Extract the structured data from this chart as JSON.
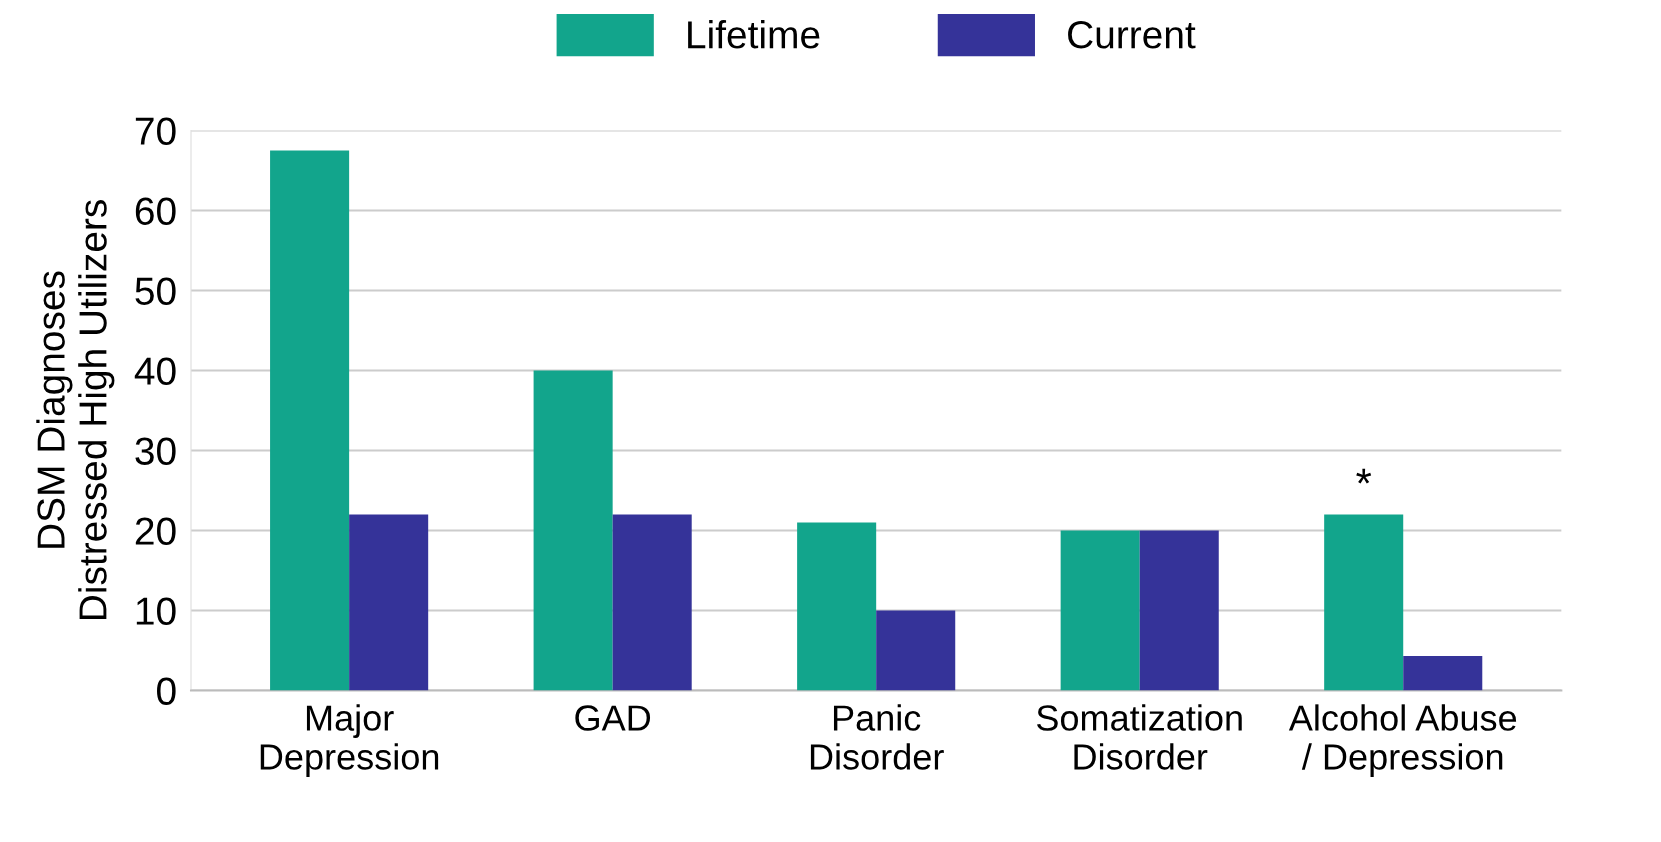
{
  "chart_data": {
    "type": "bar",
    "categories": [
      "Major\nDepression",
      "GAD",
      "Panic\nDisorder",
      "Somatization\nDisorder",
      "Alcohol Abuse\n/ Depression"
    ],
    "series": [
      {
        "name": "Lifetime",
        "color": "#12a58c",
        "values": [
          67.5,
          40,
          21,
          20,
          22
        ]
      },
      {
        "name": "Current",
        "color": "#353399",
        "values": [
          22,
          22,
          10,
          20,
          4.3
        ]
      }
    ],
    "ylabel": "DSM Diagnoses\nDistressed High Utilizers",
    "ylim": [
      0,
      70
    ],
    "yticks": [
      0,
      10,
      20,
      30,
      40,
      50,
      60,
      70
    ],
    "grid": "y",
    "legend": "top",
    "annotations": [
      {
        "text": "*",
        "x": "Alcohol Abuse\n/ Depression",
        "y": 22
      }
    ]
  }
}
